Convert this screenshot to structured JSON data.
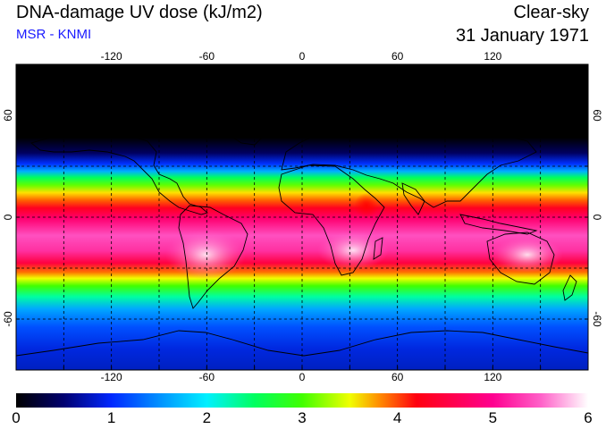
{
  "header": {
    "title": "DNA-damage UV dose (kJ/m2)",
    "credit": "MSR - KNMI",
    "sky_condition": "Clear-sky",
    "date": "31 January 1971"
  },
  "map": {
    "lon_range": [
      -180,
      180
    ],
    "lat_range": [
      -90,
      90
    ],
    "lon_ticks": [
      "-120",
      "-60",
      "0",
      "60",
      "120"
    ],
    "lon_tick_values": [
      -120,
      -60,
      0,
      60,
      120
    ],
    "lat_ticks": [
      "60",
      "0",
      "-60"
    ],
    "lat_tick_values": [
      60,
      0,
      -60
    ],
    "grid_lon_values": [
      -150,
      -120,
      -90,
      -60,
      -30,
      0,
      30,
      60,
      90,
      120,
      150
    ],
    "grid_lat_values": [
      60,
      30,
      0,
      -30,
      -60
    ],
    "gridline_style": "dashed"
  },
  "colorbar": {
    "min": 0,
    "max": 6,
    "labels": [
      "0",
      "1",
      "2",
      "3",
      "4",
      "5",
      "6"
    ],
    "stops": [
      {
        "value": 0.0,
        "color": "#000000"
      },
      {
        "value": 0.5,
        "color": "#000070"
      },
      {
        "value": 1.0,
        "color": "#0028ff"
      },
      {
        "value": 1.5,
        "color": "#0090ff"
      },
      {
        "value": 2.0,
        "color": "#00f0ff"
      },
      {
        "value": 2.5,
        "color": "#00ff60"
      },
      {
        "value": 3.0,
        "color": "#40ff00"
      },
      {
        "value": 3.5,
        "color": "#f0ff00"
      },
      {
        "value": 3.8,
        "color": "#ff9000"
      },
      {
        "value": 4.2,
        "color": "#ff0010"
      },
      {
        "value": 5.0,
        "color": "#ff0090"
      },
      {
        "value": 5.5,
        "color": "#ff60c8"
      },
      {
        "value": 6.0,
        "color": "#ffffff"
      }
    ]
  }
}
